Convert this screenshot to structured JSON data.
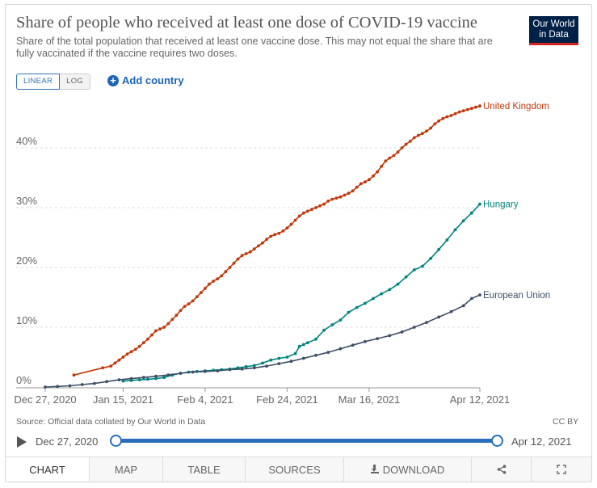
{
  "header": {
    "title": "Share of people who received at least one dose of COVID-19 vaccine",
    "subtitle": "Share of the total population that received at least one vaccine dose. This may not equal the share that are fully vaccinated if the vaccine requires two doses.",
    "logo_line1": "Our World",
    "logo_line2": "in Data"
  },
  "controls": {
    "linear_label": "LINEAR",
    "log_label": "LOG",
    "active_scale": "LINEAR",
    "add_country_label": "Add country",
    "plus_glyph": "+"
  },
  "chart_data": {
    "type": "line",
    "x_type": "date",
    "xlim": [
      "2020-12-27",
      "2021-04-12"
    ],
    "ylim": [
      0,
      50
    ],
    "y_unit": "%",
    "grid": "horizontal dotted",
    "y_ticks": [
      {
        "value": 0,
        "label": "0%"
      },
      {
        "value": 10,
        "label": "10%"
      },
      {
        "value": 20,
        "label": "20%"
      },
      {
        "value": 30,
        "label": "30%"
      },
      {
        "value": 40,
        "label": "40%"
      }
    ],
    "x_ticks": [
      {
        "date": "2020-12-27",
        "label": "Dec 27, 2020"
      },
      {
        "date": "2021-01-15",
        "label": "Jan 15, 2021"
      },
      {
        "date": "2021-02-04",
        "label": "Feb 4, 2021"
      },
      {
        "date": "2021-02-24",
        "label": "Feb 24, 2021"
      },
      {
        "date": "2021-03-16",
        "label": "Mar 16, 2021"
      },
      {
        "date": "2021-04-12",
        "label": "Apr 12, 2021"
      }
    ],
    "series": [
      {
        "name": "United Kingdom",
        "color": "#c0390b",
        "points": [
          [
            "2021-01-03",
            2.0
          ],
          [
            "2021-01-10",
            3.2
          ],
          [
            "2021-01-12",
            3.5
          ],
          [
            "2021-01-13",
            4.0
          ],
          [
            "2021-01-14",
            4.5
          ],
          [
            "2021-01-15",
            5.0
          ],
          [
            "2021-01-16",
            5.5
          ],
          [
            "2021-01-17",
            5.9
          ],
          [
            "2021-01-18",
            6.3
          ],
          [
            "2021-01-19",
            6.8
          ],
          [
            "2021-01-20",
            7.4
          ],
          [
            "2021-01-21",
            8.0
          ],
          [
            "2021-01-22",
            8.7
          ],
          [
            "2021-01-23",
            9.4
          ],
          [
            "2021-01-24",
            9.7
          ],
          [
            "2021-01-25",
            10.0
          ],
          [
            "2021-01-26",
            10.6
          ],
          [
            "2021-01-27",
            11.3
          ],
          [
            "2021-01-28",
            12.0
          ],
          [
            "2021-01-29",
            12.8
          ],
          [
            "2021-01-30",
            13.5
          ],
          [
            "2021-01-31",
            13.9
          ],
          [
            "2021-02-01",
            14.4
          ],
          [
            "2021-02-02",
            15.1
          ],
          [
            "2021-02-03",
            15.8
          ],
          [
            "2021-02-04",
            16.5
          ],
          [
            "2021-02-05",
            17.2
          ],
          [
            "2021-02-06",
            17.7
          ],
          [
            "2021-02-07",
            18.1
          ],
          [
            "2021-02-08",
            18.6
          ],
          [
            "2021-02-09",
            19.3
          ],
          [
            "2021-02-10",
            20.0
          ],
          [
            "2021-02-11",
            20.7
          ],
          [
            "2021-02-12",
            21.4
          ],
          [
            "2021-02-13",
            22.0
          ],
          [
            "2021-02-14",
            22.3
          ],
          [
            "2021-02-15",
            22.6
          ],
          [
            "2021-02-16",
            23.1
          ],
          [
            "2021-02-17",
            23.6
          ],
          [
            "2021-02-18",
            24.1
          ],
          [
            "2021-02-19",
            24.7
          ],
          [
            "2021-02-20",
            25.2
          ],
          [
            "2021-02-21",
            25.5
          ],
          [
            "2021-02-22",
            25.7
          ],
          [
            "2021-02-23",
            26.1
          ],
          [
            "2021-02-24",
            26.6
          ],
          [
            "2021-02-25",
            27.2
          ],
          [
            "2021-02-26",
            27.9
          ],
          [
            "2021-02-27",
            28.6
          ],
          [
            "2021-02-28",
            29.1
          ],
          [
            "2021-03-01",
            29.4
          ],
          [
            "2021-03-02",
            29.7
          ],
          [
            "2021-03-03",
            30.0
          ],
          [
            "2021-03-04",
            30.3
          ],
          [
            "2021-03-05",
            30.6
          ],
          [
            "2021-03-06",
            31.1
          ],
          [
            "2021-03-07",
            31.4
          ],
          [
            "2021-03-08",
            31.6
          ],
          [
            "2021-03-09",
            31.8
          ],
          [
            "2021-03-10",
            32.1
          ],
          [
            "2021-03-11",
            32.4
          ],
          [
            "2021-03-12",
            32.8
          ],
          [
            "2021-03-13",
            33.4
          ],
          [
            "2021-03-14",
            34.0
          ],
          [
            "2021-03-15",
            34.3
          ],
          [
            "2021-03-16",
            34.7
          ],
          [
            "2021-03-17",
            35.3
          ],
          [
            "2021-03-18",
            36.0
          ],
          [
            "2021-03-19",
            36.9
          ],
          [
            "2021-03-20",
            37.8
          ],
          [
            "2021-03-21",
            38.3
          ],
          [
            "2021-03-22",
            38.7
          ],
          [
            "2021-03-23",
            39.3
          ],
          [
            "2021-03-24",
            40.0
          ],
          [
            "2021-03-25",
            40.6
          ],
          [
            "2021-03-26",
            41.1
          ],
          [
            "2021-03-27",
            41.7
          ],
          [
            "2021-03-28",
            42.1
          ],
          [
            "2021-03-29",
            42.4
          ],
          [
            "2021-03-30",
            42.8
          ],
          [
            "2021-03-31",
            43.3
          ],
          [
            "2021-04-01",
            44.0
          ],
          [
            "2021-04-02",
            44.5
          ],
          [
            "2021-04-03",
            44.9
          ],
          [
            "2021-04-04",
            45.2
          ],
          [
            "2021-04-05",
            45.4
          ],
          [
            "2021-04-06",
            45.7
          ],
          [
            "2021-04-07",
            46.0
          ],
          [
            "2021-04-08",
            46.2
          ],
          [
            "2021-04-09",
            46.4
          ],
          [
            "2021-04-10",
            46.6
          ],
          [
            "2021-04-11",
            46.8
          ],
          [
            "2021-04-12",
            47.0
          ]
        ]
      },
      {
        "name": "Hungary",
        "color": "#00847e",
        "points": [
          [
            "2021-01-15",
            1.0
          ],
          [
            "2021-01-17",
            1.1
          ],
          [
            "2021-01-19",
            1.2
          ],
          [
            "2021-01-21",
            1.3
          ],
          [
            "2021-01-23",
            1.4
          ],
          [
            "2021-01-25",
            1.6
          ],
          [
            "2021-01-27",
            2.0
          ],
          [
            "2021-01-29",
            2.3
          ],
          [
            "2021-01-31",
            2.5
          ],
          [
            "2021-02-02",
            2.6
          ],
          [
            "2021-02-04",
            2.7
          ],
          [
            "2021-02-06",
            2.8
          ],
          [
            "2021-02-08",
            2.9
          ],
          [
            "2021-02-10",
            3.0
          ],
          [
            "2021-02-12",
            3.2
          ],
          [
            "2021-02-14",
            3.4
          ],
          [
            "2021-02-16",
            3.6
          ],
          [
            "2021-02-18",
            4.0
          ],
          [
            "2021-02-20",
            4.5
          ],
          [
            "2021-02-22",
            4.8
          ],
          [
            "2021-02-24",
            5.0
          ],
          [
            "2021-02-26",
            5.6
          ],
          [
            "2021-02-27",
            6.8
          ],
          [
            "2021-02-28",
            7.1
          ],
          [
            "2021-03-01",
            7.4
          ],
          [
            "2021-03-03",
            8.0
          ],
          [
            "2021-03-05",
            9.5
          ],
          [
            "2021-03-07",
            10.4
          ],
          [
            "2021-03-09",
            11.2
          ],
          [
            "2021-03-11",
            12.5
          ],
          [
            "2021-03-13",
            13.3
          ],
          [
            "2021-03-15",
            14.0
          ],
          [
            "2021-03-17",
            14.8
          ],
          [
            "2021-03-19",
            15.6
          ],
          [
            "2021-03-21",
            16.3
          ],
          [
            "2021-03-23",
            17.2
          ],
          [
            "2021-03-25",
            18.4
          ],
          [
            "2021-03-27",
            19.6
          ],
          [
            "2021-03-29",
            20.2
          ],
          [
            "2021-03-31",
            21.5
          ],
          [
            "2021-04-02",
            23.0
          ],
          [
            "2021-04-04",
            24.6
          ],
          [
            "2021-04-06",
            26.3
          ],
          [
            "2021-04-08",
            27.8
          ],
          [
            "2021-04-10",
            29.1
          ],
          [
            "2021-04-12",
            30.6
          ]
        ]
      },
      {
        "name": "European Union",
        "color": "#3d4e66",
        "points": [
          [
            "2020-12-27",
            0.0
          ],
          [
            "2020-12-30",
            0.1
          ],
          [
            "2021-01-02",
            0.2
          ],
          [
            "2021-01-05",
            0.4
          ],
          [
            "2021-01-08",
            0.6
          ],
          [
            "2021-01-11",
            0.9
          ],
          [
            "2021-01-14",
            1.2
          ],
          [
            "2021-01-17",
            1.4
          ],
          [
            "2021-01-20",
            1.6
          ],
          [
            "2021-01-23",
            1.8
          ],
          [
            "2021-01-26",
            2.0
          ],
          [
            "2021-01-29",
            2.3
          ],
          [
            "2021-02-01",
            2.5
          ],
          [
            "2021-02-04",
            2.6
          ],
          [
            "2021-02-07",
            2.7
          ],
          [
            "2021-02-10",
            2.9
          ],
          [
            "2021-02-13",
            3.0
          ],
          [
            "2021-02-16",
            3.2
          ],
          [
            "2021-02-19",
            3.5
          ],
          [
            "2021-02-22",
            3.9
          ],
          [
            "2021-02-25",
            4.3
          ],
          [
            "2021-02-28",
            4.8
          ],
          [
            "2021-03-03",
            5.3
          ],
          [
            "2021-03-06",
            5.8
          ],
          [
            "2021-03-09",
            6.4
          ],
          [
            "2021-03-12",
            7.0
          ],
          [
            "2021-03-15",
            7.6
          ],
          [
            "2021-03-18",
            8.1
          ],
          [
            "2021-03-21",
            8.6
          ],
          [
            "2021-03-24",
            9.2
          ],
          [
            "2021-03-27",
            10.0
          ],
          [
            "2021-03-30",
            10.8
          ],
          [
            "2021-04-02",
            11.7
          ],
          [
            "2021-04-05",
            12.6
          ],
          [
            "2021-04-08",
            13.6
          ],
          [
            "2021-04-10",
            14.8
          ],
          [
            "2021-04-12",
            15.4
          ]
        ]
      }
    ]
  },
  "footer": {
    "source": "Source: Official data collated by Our World in Data",
    "license": "CC BY",
    "timeline_start": "Dec 27, 2020",
    "timeline_end": "Apr 12, 2021"
  },
  "tabs": [
    {
      "id": "chart",
      "label": "CHART",
      "active": true
    },
    {
      "id": "map",
      "label": "MAP"
    },
    {
      "id": "table",
      "label": "TABLE"
    },
    {
      "id": "sources",
      "label": "SOURCES"
    },
    {
      "id": "download",
      "label": "DOWNLOAD",
      "icon": "download-icon"
    },
    {
      "id": "share",
      "label": "",
      "icon": "share-icon"
    },
    {
      "id": "fullscreen",
      "label": "",
      "icon": "expand-icon"
    }
  ]
}
